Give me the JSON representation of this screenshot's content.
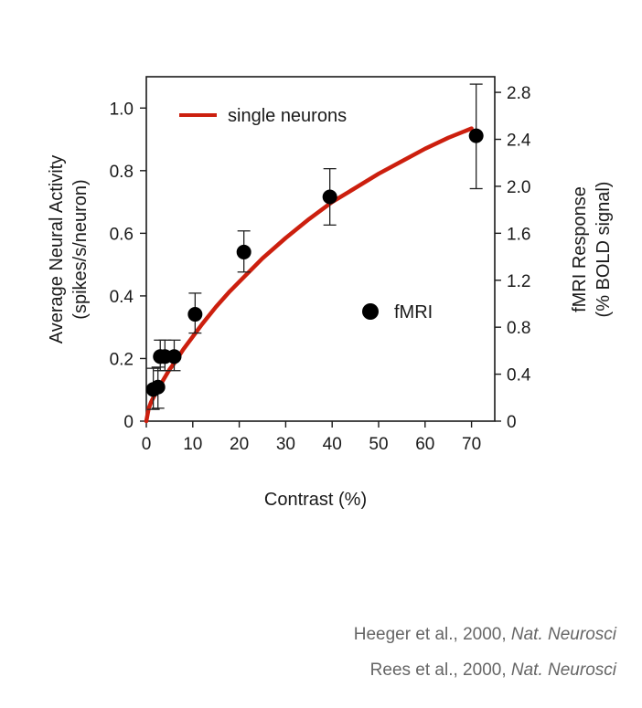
{
  "chart_data": {
    "type": "scatter",
    "xlabel": "Contrast (%)",
    "ylabel_left": [
      "Average Neural Activity",
      "(spikes/s/neuron)"
    ],
    "ylabel_right": [
      "fMRI Response",
      "(% BOLD signal)"
    ],
    "xlim": [
      0,
      75
    ],
    "ylim_left": [
      0,
      1.1
    ],
    "ylim_right": [
      0,
      2.933
    ],
    "xticks": [
      0,
      10,
      20,
      30,
      40,
      50,
      60,
      70
    ],
    "yticks_left": [
      0,
      0.2,
      0.4,
      0.6,
      0.8,
      1.0
    ],
    "yticks_left_labels": [
      "0",
      "0.2",
      "0.4",
      "0.6",
      "0.8",
      "1.0"
    ],
    "yticks_right": [
      0,
      0.4,
      0.8,
      1.2,
      1.6,
      2.0,
      2.4,
      2.8
    ],
    "yticks_right_labels": [
      "0",
      "0.4",
      "0.8",
      "1.2",
      "1.6",
      "2.0",
      "2.4",
      "2.8"
    ],
    "grid": false,
    "series": [
      {
        "name": "single neurons",
        "kind": "line",
        "color": "#cc1f0e",
        "axis": "left",
        "x": [
          0,
          0.5,
          1,
          2,
          3,
          4,
          5,
          6,
          8,
          10,
          12,
          15,
          18,
          21,
          25,
          30,
          35,
          40,
          45,
          50,
          55,
          60,
          65,
          70
        ],
        "y": [
          0,
          0.04,
          0.06,
          0.09,
          0.115,
          0.14,
          0.165,
          0.185,
          0.23,
          0.27,
          0.31,
          0.365,
          0.415,
          0.46,
          0.52,
          0.585,
          0.645,
          0.7,
          0.745,
          0.79,
          0.83,
          0.87,
          0.905,
          0.935
        ]
      },
      {
        "name": "fMRI",
        "kind": "scatter",
        "color": "#000000",
        "axis": "right",
        "x": [
          1.5,
          2.5,
          3,
          4,
          6,
          10.5,
          21,
          39.5,
          71
        ],
        "y": [
          0.27,
          0.29,
          0.55,
          0.55,
          0.55,
          0.91,
          1.44,
          1.91,
          2.43
        ],
        "err_low": [
          0.17,
          0.18,
          0.12,
          0.12,
          0.12,
          0.16,
          0.17,
          0.24,
          0.45
        ],
        "err_high": [
          0.18,
          0.17,
          0.14,
          0.14,
          0.14,
          0.18,
          0.18,
          0.24,
          0.44
        ]
      }
    ],
    "legend": [
      {
        "label": "single neurons",
        "marker": "line",
        "color": "#cc1f0e",
        "placement": "top-left"
      },
      {
        "label": "fMRI",
        "marker": "circle",
        "color": "#000000",
        "placement": "middle-right"
      }
    ]
  },
  "citations": [
    {
      "authors": "Heeger et al., 2000, ",
      "journal": "Nat. Neurosci"
    },
    {
      "authors": "Rees et al., 2000, ",
      "journal": "Nat. Neurosci"
    }
  ]
}
